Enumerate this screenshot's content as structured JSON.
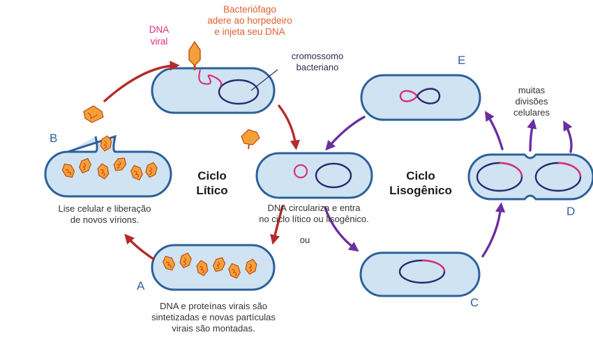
{
  "labels": {
    "phage_caption": [
      "Bacteriófago",
      "adere ao horpedeiro",
      "e injeta seu DNA"
    ],
    "viral_dna": [
      "DNA",
      "viral"
    ],
    "chromosome": [
      "cromossomo",
      "bacteriano"
    ],
    "lytic_title": [
      "Ciclo",
      "Lítico"
    ],
    "lysogenic_title": [
      "Ciclo",
      "Lisogênico"
    ],
    "circularize_caption": [
      "DNA circulariza e entra",
      "no ciclo lítico ou lisogênico."
    ],
    "or": "ou",
    "lysis_caption": [
      "Lise celular e liberação",
      "de novos vírions."
    ],
    "synthesis_caption": [
      "DNA e proteínas virais são",
      "sintetizadas e novas partículas",
      "virais são montadas."
    ],
    "divisions_caption": [
      "muitas",
      "divisões",
      "celulares"
    ]
  },
  "stage_letters": {
    "a": "A",
    "b": "B",
    "c": "C",
    "d": "D",
    "e": "E"
  },
  "colors": {
    "cell_fill": "#cfe3f3",
    "cell_stroke": "#2c6098",
    "phage": "#f3a03a",
    "phage_stroke": "#c24a12",
    "viral_dna": "#d9307a",
    "bacterial_dna": "#2a2a6e",
    "lytic_arrow": "#b52a2a",
    "lysogenic_arrow": "#6b2fa0",
    "letter": "#2e5f9e"
  }
}
